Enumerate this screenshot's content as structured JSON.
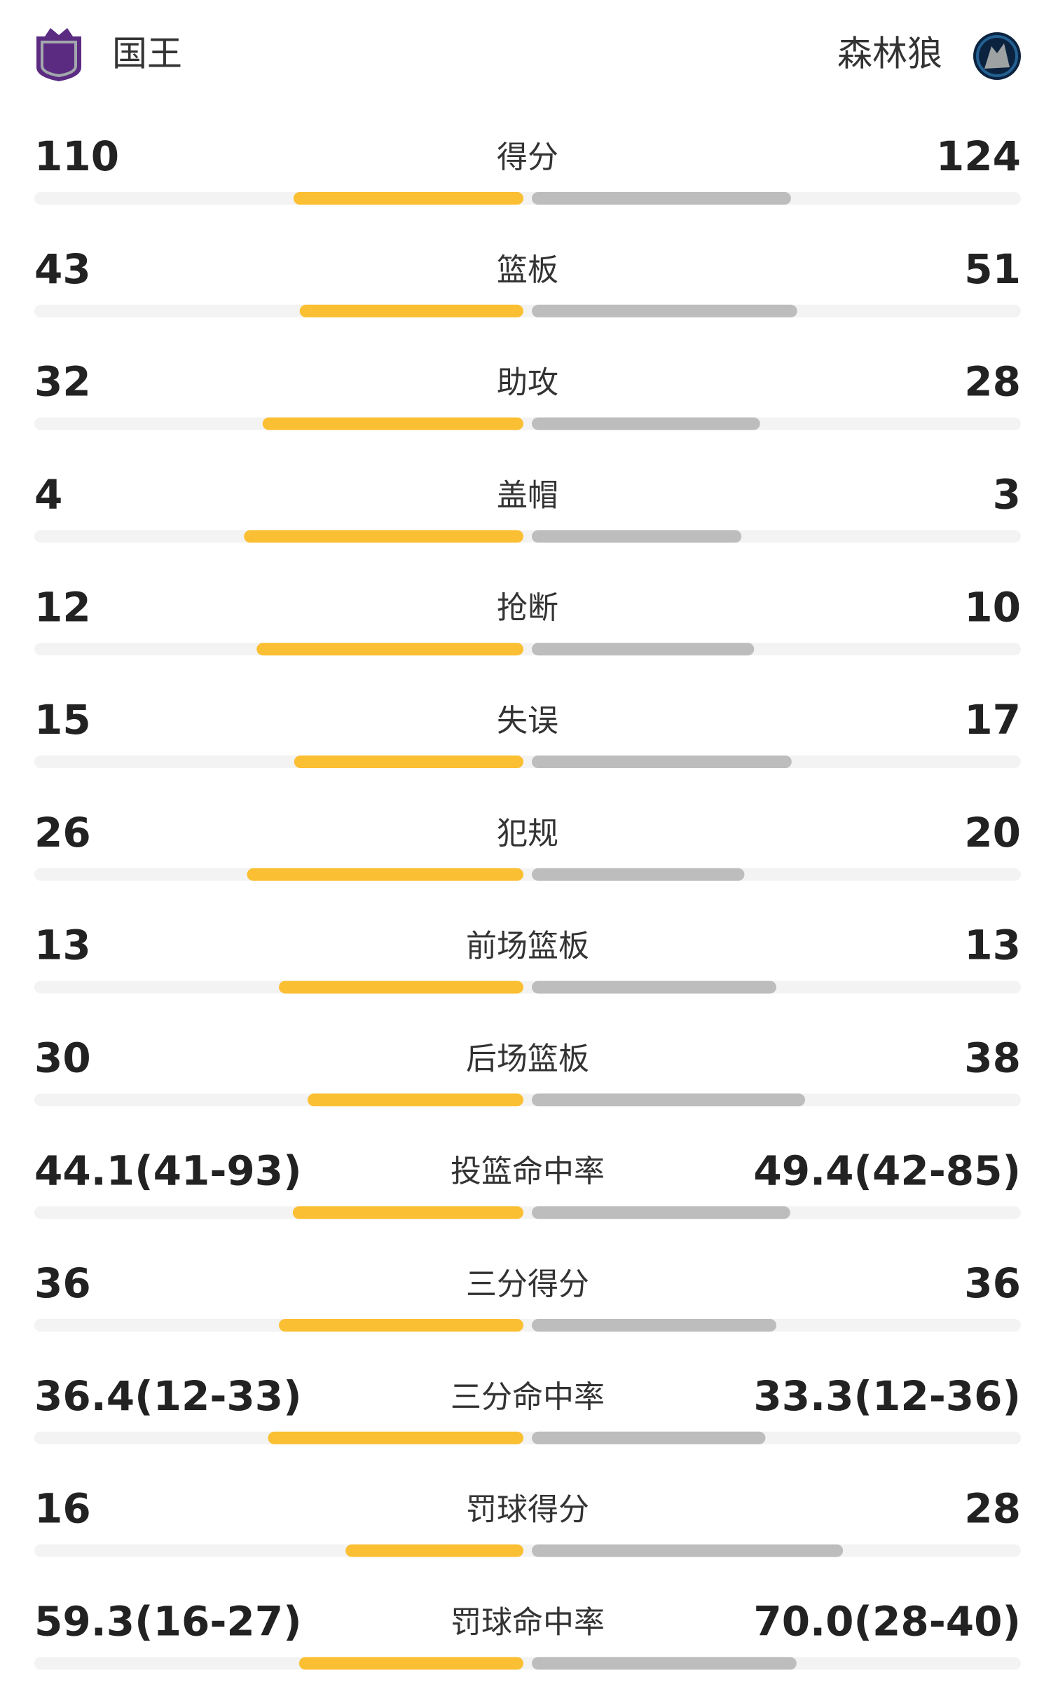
{
  "teams": {
    "home": {
      "name": "国王",
      "color": "#fbbf33"
    },
    "away": {
      "name": "森林狼",
      "color": "#bdbdbd"
    }
  },
  "stats": [
    {
      "label": "得分",
      "home": 110,
      "away": 124
    },
    {
      "label": "篮板",
      "home": 43,
      "away": 51
    },
    {
      "label": "助攻",
      "home": 32,
      "away": 28
    },
    {
      "label": "盖帽",
      "home": 4,
      "away": 3
    },
    {
      "label": "抢断",
      "home": 12,
      "away": 10
    },
    {
      "label": "失误",
      "home": 15,
      "away": 17
    },
    {
      "label": "犯规",
      "home": 26,
      "away": 20
    },
    {
      "label": "前场篮板",
      "home": 13,
      "away": 13
    },
    {
      "label": "后场篮板",
      "home": 30,
      "away": 38
    },
    {
      "label": "投篮命中率",
      "home": 44.1,
      "home_label": "44.1(41-93)",
      "away": 49.4,
      "away_label": "49.4(42-85)"
    },
    {
      "label": "三分得分",
      "home": 36,
      "away": 36
    },
    {
      "label": "三分命中率",
      "home": 36.4,
      "home_label": "36.4(12-33)",
      "away": 33.3,
      "away_label": "33.3(12-36)"
    },
    {
      "label": "罚球得分",
      "home": 16,
      "away": 28
    },
    {
      "label": "罚球命中率",
      "home": 59.3,
      "home_label": "59.3(16-27)",
      "away": 70.0,
      "away_label": "70.0(28-40)"
    }
  ]
}
